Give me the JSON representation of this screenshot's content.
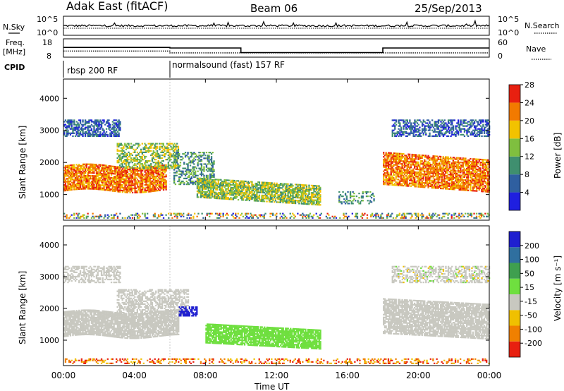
{
  "header": {
    "station": "Adak East (fitACF)",
    "beam": "Beam 06",
    "date": "25/Sep/2013"
  },
  "noise_panel": {
    "left_label": "N.Sky",
    "right_label": "N.Search",
    "left_ticks": [
      "10^5",
      "10^0"
    ],
    "right_ticks": [
      "10^5",
      "10^0"
    ]
  },
  "freq_panel": {
    "left_label": "Freq.",
    "left_unit": "[MHz]",
    "left_ticks": [
      "18",
      "8"
    ],
    "right_label": "Nave",
    "right_ticks": [
      "60",
      "0"
    ]
  },
  "cpid_panel": {
    "label": "CPID",
    "programs": [
      {
        "name": "rbsp 200 RF",
        "start_hour": 0
      },
      {
        "name": "normalsound (fast) 157 RF",
        "start_hour": 6
      }
    ]
  },
  "power_panel": {
    "ylabel": "Slant Range [km]",
    "yticks": [
      "1000",
      "2000",
      "3000",
      "4000"
    ],
    "colorbar_label": "Power [dB]",
    "colorbar_ticks": [
      "4",
      "8",
      "12",
      "16",
      "20",
      "24",
      "28"
    ],
    "colors": [
      "#1f1fe0",
      "#2f5fa0",
      "#3f8f6f",
      "#7fbf3f",
      "#f2c200",
      "#f27a00",
      "#e82010"
    ]
  },
  "velocity_panel": {
    "ylabel": "Slant Range [km]",
    "yticks": [
      "1000",
      "2000",
      "3000",
      "4000"
    ],
    "colorbar_label": "Velocity [m s⁻¹]",
    "colorbar_ticks": [
      "200",
      "100",
      "50",
      "15",
      "-15",
      "-50",
      "-100",
      "-200"
    ],
    "colors": [
      "#1f1fd0",
      "#2f6f9f",
      "#3f9f4f",
      "#6fdf3f",
      "#c8c8c0",
      "#f0c000",
      "#f08000",
      "#e82010"
    ]
  },
  "xaxis": {
    "label": "Time UT",
    "ticks": [
      "00:00",
      "04:00",
      "08:00",
      "12:00",
      "16:00",
      "20:00",
      "00:00"
    ]
  },
  "chart_data": {
    "type": "heatmap",
    "title": "Adak East (fitACF) Beam 06 25/Sep/2013",
    "xlabel": "Time UT",
    "ylabel": "Slant Range [km]",
    "xlim_hours": [
      0,
      24
    ],
    "ylim_km": [
      200,
      4600
    ],
    "frequency_steps": [
      {
        "from_hour": 0,
        "to_hour": 6,
        "freq_mhz": 13.3
      },
      {
        "from_hour": 6,
        "to_hour": 10,
        "freq_mhz": 13.0
      },
      {
        "from_hour": 10,
        "to_hour": 18,
        "freq_mhz": 10.5
      },
      {
        "from_hour": 18,
        "to_hour": 24,
        "freq_mhz": 13.0
      }
    ],
    "power_features": [
      {
        "name": "main band",
        "time_hours": [
          0,
          6
        ],
        "range_km": [
          1200,
          1900
        ],
        "peak_db": 28
      },
      {
        "name": "upper band",
        "time_hours": [
          0,
          3
        ],
        "range_km": [
          2900,
          3300
        ],
        "peak_db": 8
      },
      {
        "name": "descending band",
        "time_hours": [
          7,
          14
        ],
        "range_km": [
          900,
          1500
        ],
        "peak_db": 22
      },
      {
        "name": "evening band",
        "time_hours": [
          18,
          24
        ],
        "range_km": [
          1300,
          2300
        ],
        "peak_db": 26
      },
      {
        "name": "evening upper band",
        "time_hours": [
          18,
          24
        ],
        "range_km": [
          2800,
          3300
        ],
        "peak_db": 10
      }
    ],
    "velocity_features": [
      {
        "name": "ground scatter",
        "time_hours": [
          0,
          6
        ],
        "range_km": [
          1200,
          1900
        ],
        "velocity_ms": 0
      },
      {
        "name": "positive flow",
        "time_hours": [
          8,
          14
        ],
        "range_km": [
          900,
          1500
        ],
        "velocity_ms": 30
      },
      {
        "name": "blue patch",
        "time_hours": [
          5.8,
          7
        ],
        "range_km": [
          1800,
          2100
        ],
        "velocity_ms": 180
      },
      {
        "name": "evening scatter",
        "time_hours": [
          18,
          24
        ],
        "range_km": [
          1200,
          2300
        ],
        "velocity_ms": 0
      }
    ]
  }
}
